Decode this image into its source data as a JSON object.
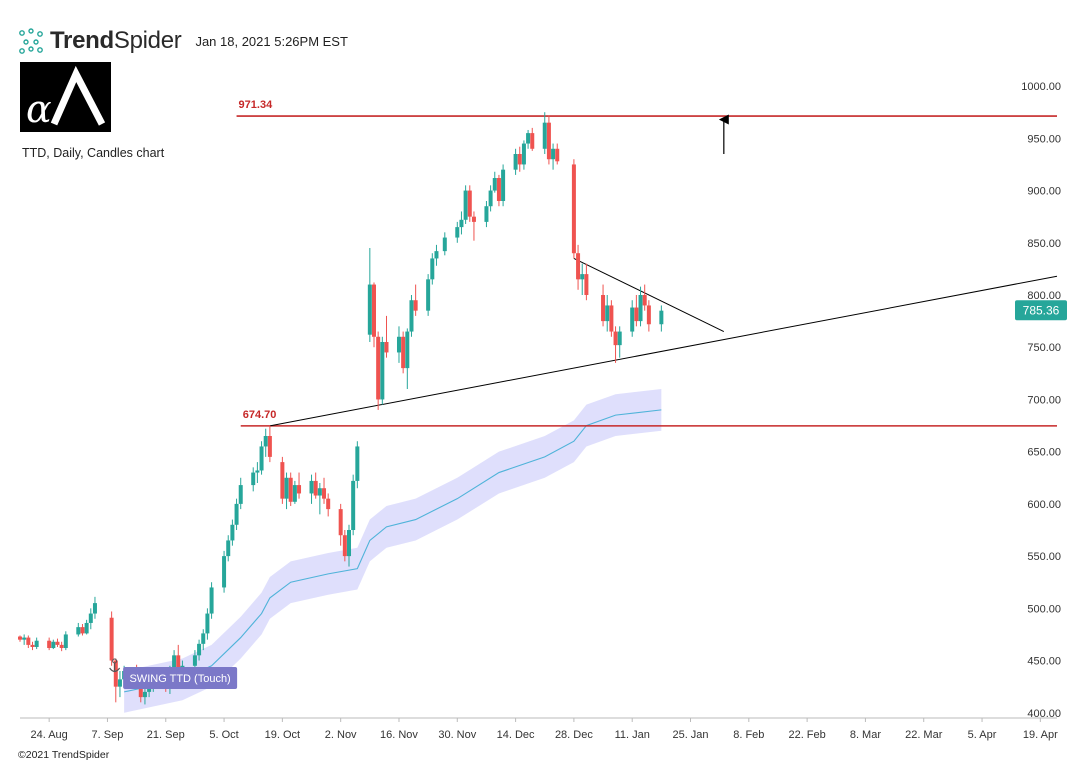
{
  "header": {
    "brand_bold": "Trend",
    "brand_regular": "Spider",
    "timestamp": "Jan 18, 2021 5:26PM EST"
  },
  "chart_description": "TTD, Daily, Candles chart",
  "footer": {
    "copyright": "©2021 TrendSpider"
  },
  "colors": {
    "up": "#26a69a",
    "down": "#ef5350",
    "level": "#c62828",
    "trendline": "#000000",
    "ma": "#4fb3d9",
    "band": "#d9d9fb",
    "price_tag": "#26a69a",
    "badge": "#7b78c8"
  },
  "chart_data": {
    "type": "candlestick",
    "symbol": "TTD",
    "timeframe": "Daily",
    "ylim": [
      395,
      1025
    ],
    "yticks": [
      "1000.00",
      "950.00",
      "900.00",
      "850.00",
      "800.00",
      "750.00",
      "700.00",
      "650.00",
      "600.00",
      "550.00",
      "500.00",
      "450.00",
      "400.00"
    ],
    "xaxis": {
      "start_date": "2020-08-17",
      "end_date": "2021-04-23",
      "tick_labels": [
        "24. Aug",
        "7. Sep",
        "21. Sep",
        "5. Oct",
        "19. Oct",
        "2. Nov",
        "16. Nov",
        "30. Nov",
        "14. Dec",
        "28. Dec",
        "11. Jan",
        "25. Jan",
        "8. Feb",
        "22. Feb",
        "8. Mar",
        "22. Mar",
        "5. Apr",
        "19. Apr"
      ]
    },
    "current_price": "785.36",
    "levels": [
      {
        "label": "971.34",
        "value": 971.34,
        "from": "2020-10-08",
        "to": "2021-04-23"
      },
      {
        "label": "674.70",
        "value": 674.7,
        "from": "2020-10-09",
        "to": "2021-04-23"
      }
    ],
    "trendlines": [
      {
        "name": "support",
        "from": [
          "2020-10-16",
          674.7
        ],
        "to": [
          "2021-04-23",
          818
        ]
      },
      {
        "name": "resistance",
        "from": [
          "2020-12-28",
          835
        ],
        "to": [
          "2021-02-02",
          765
        ]
      }
    ],
    "arrow": {
      "date": "2021-02-02",
      "from": 935,
      "to": 968
    },
    "badge": {
      "label": "SWING TTD (Touch)",
      "date": "2020-09-11"
    },
    "anchor_date": "2020-09-08",
    "candles": [
      [
        "2020-08-17",
        473,
        474,
        468,
        470
      ],
      [
        "2020-08-18",
        470,
        475,
        465,
        472
      ],
      [
        "2020-08-19",
        472,
        474,
        462,
        465
      ],
      [
        "2020-08-20",
        465,
        468,
        460,
        463
      ],
      [
        "2020-08-21",
        463,
        472,
        461,
        469
      ],
      [
        "2020-08-24",
        469,
        472,
        460,
        462
      ],
      [
        "2020-08-25",
        462,
        470,
        461,
        468
      ],
      [
        "2020-08-26",
        468,
        471,
        463,
        465
      ],
      [
        "2020-08-27",
        465,
        468,
        459,
        462
      ],
      [
        "2020-08-28",
        462,
        478,
        460,
        475
      ],
      [
        "2020-08-31",
        475,
        486,
        473,
        482
      ],
      [
        "2020-09-01",
        482,
        485,
        474,
        476
      ],
      [
        "2020-09-02",
        476,
        489,
        475,
        486
      ],
      [
        "2020-09-03",
        486,
        500,
        480,
        495
      ],
      [
        "2020-09-04",
        495,
        511,
        490,
        505
      ],
      [
        "2020-09-08",
        491,
        497,
        445,
        450
      ],
      [
        "2020-09-09",
        450,
        452,
        410,
        425
      ],
      [
        "2020-09-10",
        425,
        440,
        415,
        432
      ],
      [
        "2020-09-11",
        432,
        445,
        425,
        440
      ],
      [
        "2020-09-14",
        440,
        446,
        430,
        435
      ],
      [
        "2020-09-15",
        435,
        440,
        410,
        415
      ],
      [
        "2020-09-16",
        415,
        425,
        408,
        420
      ],
      [
        "2020-09-17",
        420,
        432,
        415,
        428
      ],
      [
        "2020-09-18",
        428,
        440,
        420,
        436
      ],
      [
        "2020-09-21",
        436,
        442,
        420,
        425
      ],
      [
        "2020-09-22",
        425,
        445,
        418,
        440
      ],
      [
        "2020-09-23",
        440,
        460,
        435,
        455
      ],
      [
        "2020-09-24",
        455,
        465,
        430,
        440
      ],
      [
        "2020-09-25",
        440,
        450,
        430,
        445
      ],
      [
        "2020-09-28",
        445,
        460,
        440,
        455
      ],
      [
        "2020-09-29",
        455,
        470,
        450,
        466
      ],
      [
        "2020-09-30",
        466,
        480,
        460,
        476
      ],
      [
        "2020-10-01",
        476,
        500,
        470,
        495
      ],
      [
        "2020-10-02",
        495,
        525,
        490,
        520
      ],
      [
        "2020-10-05",
        520,
        555,
        515,
        550
      ],
      [
        "2020-10-06",
        550,
        570,
        545,
        565
      ],
      [
        "2020-10-07",
        565,
        585,
        560,
        580
      ],
      [
        "2020-10-08",
        580,
        605,
        575,
        600
      ],
      [
        "2020-10-09",
        600,
        625,
        595,
        618
      ],
      [
        "2020-10-12",
        618,
        635,
        612,
        630
      ],
      [
        "2020-10-13",
        630,
        640,
        620,
        632
      ],
      [
        "2020-10-14",
        632,
        660,
        628,
        655
      ],
      [
        "2020-10-15",
        655,
        672,
        645,
        665
      ],
      [
        "2020-10-16",
        665,
        675,
        640,
        645
      ],
      [
        "2020-10-19",
        640,
        645,
        600,
        605
      ],
      [
        "2020-10-20",
        605,
        630,
        595,
        625
      ],
      [
        "2020-10-21",
        625,
        630,
        598,
        602
      ],
      [
        "2020-10-22",
        602,
        622,
        600,
        618
      ],
      [
        "2020-10-23",
        618,
        630,
        605,
        610
      ],
      [
        "2020-10-26",
        610,
        628,
        600,
        622
      ],
      [
        "2020-10-27",
        622,
        630,
        605,
        608
      ],
      [
        "2020-10-28",
        608,
        620,
        590,
        615
      ],
      [
        "2020-10-29",
        615,
        625,
        600,
        605
      ],
      [
        "2020-10-30",
        605,
        610,
        588,
        595
      ],
      [
        "2020-11-02",
        595,
        600,
        560,
        570
      ],
      [
        "2020-11-03",
        570,
        575,
        545,
        550
      ],
      [
        "2020-11-04",
        550,
        580,
        540,
        575
      ],
      [
        "2020-11-05",
        575,
        628,
        570,
        622
      ],
      [
        "2020-11-06",
        622,
        660,
        615,
        655
      ],
      [
        "2020-11-09",
        762,
        845,
        755,
        810
      ],
      [
        "2020-11-10",
        810,
        812,
        750,
        760
      ],
      [
        "2020-11-11",
        760,
        765,
        690,
        700
      ],
      [
        "2020-11-12",
        700,
        760,
        695,
        755
      ],
      [
        "2020-11-13",
        755,
        780,
        740,
        745
      ],
      [
        "2020-11-16",
        745,
        770,
        735,
        760
      ],
      [
        "2020-11-17",
        760,
        765,
        725,
        730
      ],
      [
        "2020-11-18",
        730,
        768,
        710,
        765
      ],
      [
        "2020-11-19",
        765,
        800,
        760,
        795
      ],
      [
        "2020-11-20",
        795,
        810,
        780,
        785
      ],
      [
        "2020-11-23",
        785,
        820,
        780,
        815
      ],
      [
        "2020-11-24",
        815,
        840,
        810,
        835
      ],
      [
        "2020-11-25",
        835,
        848,
        828,
        842
      ],
      [
        "2020-11-27",
        842,
        860,
        838,
        855
      ],
      [
        "2020-11-30",
        855,
        870,
        850,
        865
      ],
      [
        "2020-12-01",
        865,
        880,
        858,
        872
      ],
      [
        "2020-12-02",
        872,
        905,
        868,
        900
      ],
      [
        "2020-12-03",
        900,
        905,
        870,
        875
      ],
      [
        "2020-12-04",
        875,
        880,
        852,
        870
      ],
      [
        "2020-12-07",
        870,
        890,
        865,
        885
      ],
      [
        "2020-12-08",
        885,
        905,
        880,
        900
      ],
      [
        "2020-12-09",
        900,
        918,
        898,
        912
      ],
      [
        "2020-12-10",
        912,
        915,
        885,
        890
      ],
      [
        "2020-12-11",
        890,
        925,
        885,
        920
      ],
      [
        "2020-12-14",
        920,
        940,
        915,
        935
      ],
      [
        "2020-12-15",
        935,
        942,
        918,
        925
      ],
      [
        "2020-12-16",
        925,
        948,
        920,
        945
      ],
      [
        "2020-12-17",
        945,
        958,
        940,
        955
      ],
      [
        "2020-12-18",
        955,
        960,
        938,
        940
      ],
      [
        "2020-12-21",
        940,
        975,
        935,
        965
      ],
      [
        "2020-12-22",
        965,
        972,
        925,
        930
      ],
      [
        "2020-12-23",
        930,
        945,
        920,
        940
      ],
      [
        "2020-12-24",
        940,
        945,
        925,
        928
      ],
      [
        "2020-12-28",
        925,
        930,
        835,
        840
      ],
      [
        "2020-12-29",
        840,
        848,
        805,
        815
      ],
      [
        "2020-12-30",
        815,
        830,
        800,
        820
      ],
      [
        "2020-12-31",
        820,
        830,
        795,
        800
      ],
      [
        "2021-01-04",
        800,
        810,
        770,
        775
      ],
      [
        "2021-01-05",
        775,
        800,
        765,
        790
      ],
      [
        "2021-01-06",
        790,
        795,
        760,
        765
      ],
      [
        "2021-01-07",
        765,
        770,
        735,
        752
      ],
      [
        "2021-01-08",
        752,
        770,
        740,
        765
      ],
      [
        "2021-01-11",
        765,
        795,
        760,
        788
      ],
      [
        "2021-01-12",
        788,
        800,
        770,
        775
      ],
      [
        "2021-01-13",
        775,
        808,
        770,
        800
      ],
      [
        "2021-01-14",
        800,
        810,
        785,
        790
      ],
      [
        "2021-01-15",
        790,
        795,
        765,
        772
      ],
      [
        "2021-01-18",
        772,
        790,
        765,
        785
      ]
    ],
    "ma_line": [
      [
        "2020-09-11",
        420
      ],
      [
        "2020-09-25",
        432
      ],
      [
        "2020-10-02",
        445
      ],
      [
        "2020-10-09",
        472
      ],
      [
        "2020-10-14",
        495
      ],
      [
        "2020-10-16",
        510
      ],
      [
        "2020-10-21",
        525
      ],
      [
        "2020-10-30",
        533
      ],
      [
        "2020-11-06",
        538
      ],
      [
        "2020-11-09",
        565
      ],
      [
        "2020-11-13",
        578
      ],
      [
        "2020-11-20",
        585
      ],
      [
        "2020-11-30",
        605
      ],
      [
        "2020-12-10",
        630
      ],
      [
        "2020-12-21",
        645
      ],
      [
        "2020-12-28",
        660
      ],
      [
        "2020-12-31",
        675
      ],
      [
        "2021-01-07",
        685
      ],
      [
        "2021-01-18",
        690
      ]
    ],
    "band_width": 20
  }
}
